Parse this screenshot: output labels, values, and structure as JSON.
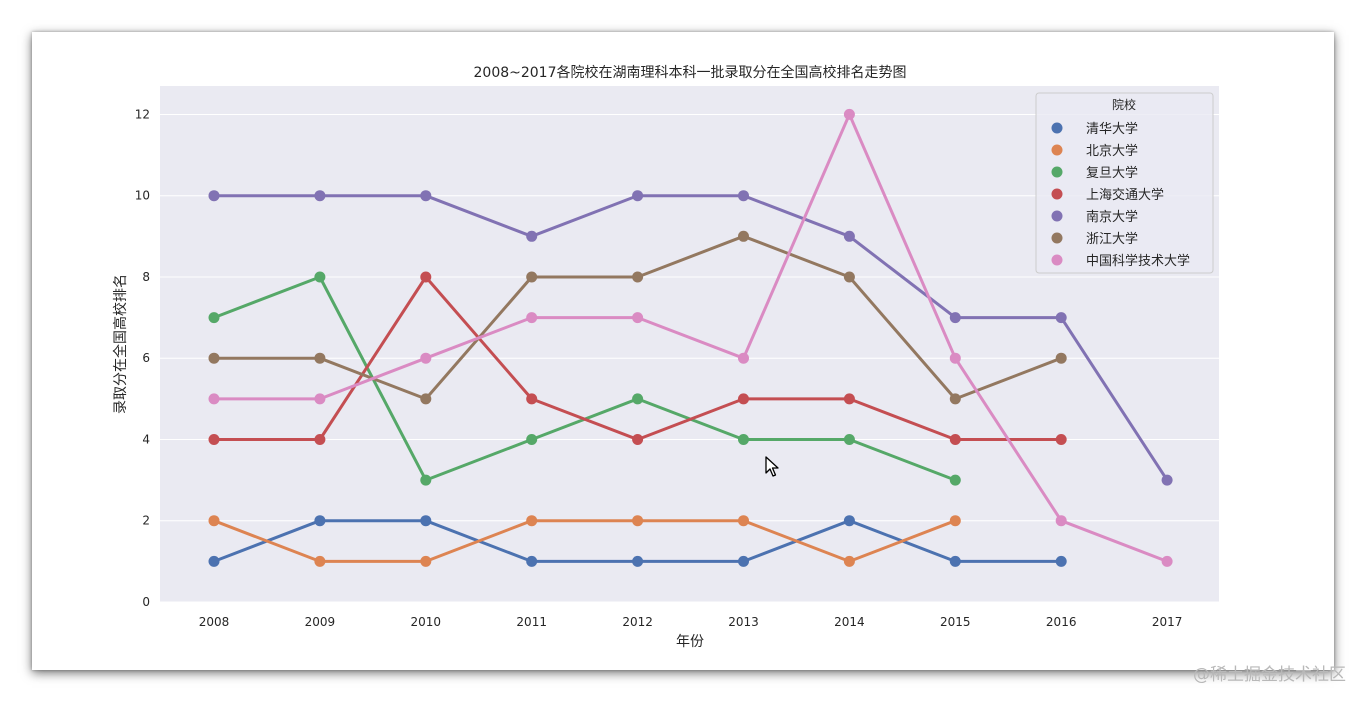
{
  "chart_data": {
    "type": "line",
    "title": "2008~2017各院校在湖南理科本科一批录取分在全国高校排名走势图",
    "xlabel": "年份",
    "ylabel": "录取分在全国高校排名",
    "categories": [
      "2008",
      "2009",
      "2010",
      "2011",
      "2012",
      "2013",
      "2014",
      "2015",
      "2016",
      "2017"
    ],
    "ylim": [
      0,
      12.7
    ],
    "yticks": [
      0,
      2,
      4,
      6,
      8,
      10,
      12
    ],
    "grid": true,
    "legend": {
      "title": "院校",
      "position": "top-right"
    },
    "series": [
      {
        "name": "清华大学",
        "color": "#4c72b0",
        "values": [
          1,
          2,
          2,
          1,
          1,
          1,
          2,
          1,
          1,
          null
        ]
      },
      {
        "name": "北京大学",
        "color": "#dd8452",
        "values": [
          2,
          1,
          1,
          2,
          2,
          2,
          1,
          2,
          null,
          null
        ]
      },
      {
        "name": "复旦大学",
        "color": "#55a868",
        "values": [
          7,
          8,
          3,
          4,
          5,
          4,
          4,
          3,
          null,
          null
        ]
      },
      {
        "name": "上海交通大学",
        "color": "#c44e52",
        "values": [
          4,
          4,
          8,
          5,
          4,
          5,
          5,
          4,
          4,
          null
        ]
      },
      {
        "name": "南京大学",
        "color": "#8172b3",
        "values": [
          10,
          10,
          10,
          9,
          10,
          10,
          9,
          7,
          7,
          3
        ]
      },
      {
        "name": "浙江大学",
        "color": "#937860",
        "values": [
          6,
          6,
          5,
          8,
          8,
          9,
          8,
          5,
          6,
          null
        ]
      },
      {
        "name": "中国科学技术大学",
        "color": "#da8bc3",
        "values": [
          5,
          5,
          6,
          7,
          7,
          6,
          12,
          6,
          2,
          1
        ]
      }
    ]
  },
  "watermark": "@稀土掘金技术社区"
}
